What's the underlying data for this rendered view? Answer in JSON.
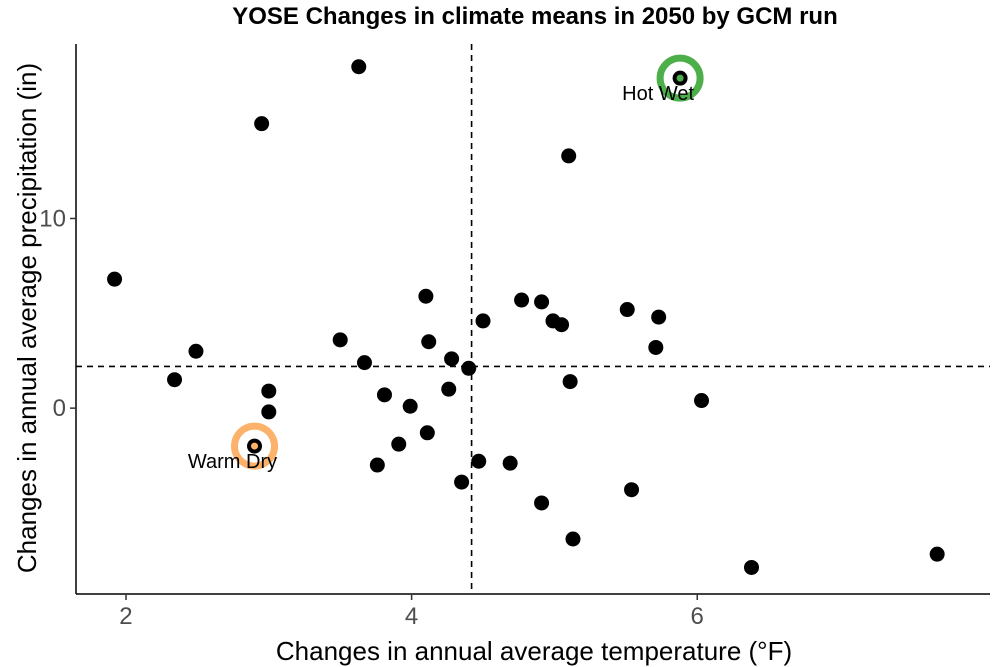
{
  "chart_data": {
    "type": "scatter",
    "title": "YOSE Changes in climate means in 2050 by GCM run",
    "xlabel": "Changes in annual average temperature (°F)",
    "ylabel": "Changes in annual average precipitation (in)",
    "xlim": [
      1.65,
      8.05
    ],
    "ylim": [
      -9.8,
      19.2
    ],
    "xticks": [
      2,
      4,
      6
    ],
    "yticks": [
      0,
      10
    ],
    "grid": false,
    "reference_lines": {
      "x": 4.42,
      "y": 2.2
    },
    "points": [
      {
        "x": 1.92,
        "y": 6.8
      },
      {
        "x": 2.34,
        "y": 1.5
      },
      {
        "x": 2.49,
        "y": 3.0
      },
      {
        "x": 2.95,
        "y": 15.0
      },
      {
        "x": 3.0,
        "y": 0.9
      },
      {
        "x": 3.0,
        "y": -0.2
      },
      {
        "x": 3.5,
        "y": 3.6
      },
      {
        "x": 3.63,
        "y": 18.0
      },
      {
        "x": 3.67,
        "y": 2.4
      },
      {
        "x": 3.76,
        "y": -3.0
      },
      {
        "x": 3.81,
        "y": 0.7
      },
      {
        "x": 3.91,
        "y": -1.9
      },
      {
        "x": 3.99,
        "y": 0.1
      },
      {
        "x": 4.1,
        "y": 5.9
      },
      {
        "x": 4.12,
        "y": 3.5
      },
      {
        "x": 4.11,
        "y": -1.3
      },
      {
        "x": 4.26,
        "y": 1.0
      },
      {
        "x": 4.28,
        "y": 2.6
      },
      {
        "x": 4.35,
        "y": -3.9
      },
      {
        "x": 4.4,
        "y": 2.1
      },
      {
        "x": 4.47,
        "y": -2.8
      },
      {
        "x": 4.5,
        "y": 4.6
      },
      {
        "x": 4.69,
        "y": -2.9
      },
      {
        "x": 4.77,
        "y": 5.7
      },
      {
        "x": 4.91,
        "y": 5.6
      },
      {
        "x": 4.91,
        "y": -5.0
      },
      {
        "x": 4.99,
        "y": 4.6
      },
      {
        "x": 5.05,
        "y": 4.4
      },
      {
        "x": 5.1,
        "y": 13.3
      },
      {
        "x": 5.11,
        "y": 1.4
      },
      {
        "x": 5.13,
        "y": -6.9
      },
      {
        "x": 5.51,
        "y": 5.2
      },
      {
        "x": 5.54,
        "y": -4.3
      },
      {
        "x": 5.71,
        "y": 3.2
      },
      {
        "x": 5.73,
        "y": 4.8
      },
      {
        "x": 6.03,
        "y": 0.4
      },
      {
        "x": 6.38,
        "y": -8.4
      },
      {
        "x": 7.68,
        "y": -7.7
      },
      {
        "x": 5.88,
        "y": 17.4
      },
      {
        "x": 2.9,
        "y": -2.0
      }
    ],
    "highlights": [
      {
        "label": "Hot Wet",
        "x": 5.88,
        "y": 17.4,
        "color": "#4daf4a"
      },
      {
        "label": "Warm Dry",
        "x": 2.9,
        "y": -2.0,
        "color": "#fdb26b"
      }
    ]
  }
}
